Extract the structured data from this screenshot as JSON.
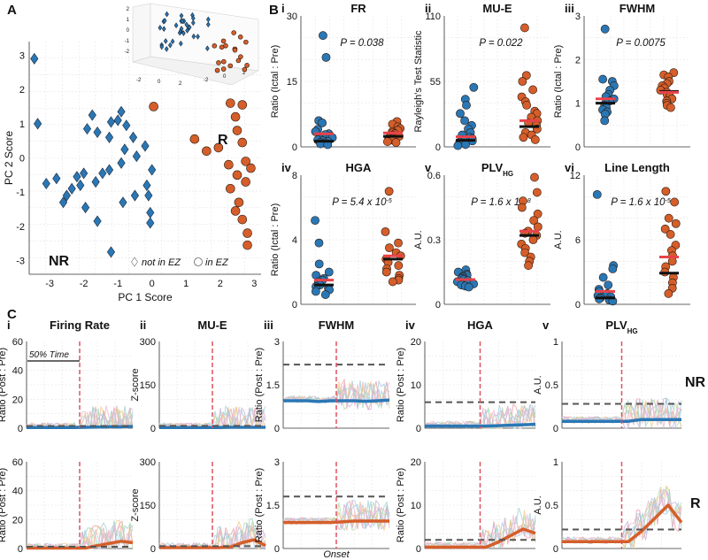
{
  "panel_labels": {
    "A": "A",
    "B": "B",
    "C": "C"
  },
  "colors": {
    "nr": "#2a77b5",
    "r": "#d55e2a",
    "red_line": "#e8434a",
    "black_line": "#111111",
    "dash": "#555555",
    "vline": "#e05060",
    "grid": "#e5e5e5"
  },
  "chart_data": [
    {
      "id": "A",
      "type": "scatter",
      "xlabel": "PC 1 Score",
      "ylabel": "PC 2 Score",
      "xlim": [
        -3.6,
        3.2
      ],
      "ylim": [
        -3.4,
        3.4
      ],
      "xticks": [
        -3,
        -2,
        -1,
        0,
        1,
        2,
        3
      ],
      "yticks": [
        -3,
        -2,
        -1,
        0,
        1,
        2,
        3
      ],
      "group_labels": {
        "nr": "NR",
        "r": "R"
      },
      "legend": {
        "nr_text": "not in EZ",
        "r_text": "in EZ"
      },
      "series": [
        {
          "name": "NR",
          "marker": "diamond",
          "points": [
            [
              -3.45,
              2.9
            ],
            [
              -3.35,
              1.0
            ],
            [
              -1.9,
              0.85
            ],
            [
              -1.75,
              1.25
            ],
            [
              -1.6,
              0.75
            ],
            [
              -1.2,
              1.05
            ],
            [
              -1.0,
              1.1
            ],
            [
              -0.9,
              1.35
            ],
            [
              -0.75,
              0.95
            ],
            [
              -1.25,
              0.6
            ],
            [
              -0.55,
              0.6
            ],
            [
              -0.2,
              0.35
            ],
            [
              -0.8,
              0.25
            ],
            [
              -0.45,
              0.05
            ],
            [
              -0.9,
              -0.15
            ],
            [
              -1.25,
              -0.35
            ],
            [
              -1.45,
              -0.45
            ],
            [
              -1.65,
              -0.7
            ],
            [
              -2.0,
              -0.45
            ],
            [
              -2.2,
              -0.55
            ],
            [
              -2.1,
              -0.8
            ],
            [
              -2.35,
              -0.9
            ],
            [
              -2.5,
              -1.1
            ],
            [
              -2.6,
              -1.3
            ],
            [
              -2.8,
              -0.6
            ],
            [
              -3.1,
              -0.75
            ],
            [
              -1.95,
              -1.45
            ],
            [
              -1.6,
              -1.85
            ],
            [
              -0.85,
              -1.3
            ],
            [
              -0.5,
              -1.1
            ],
            [
              -0.1,
              -1.1
            ],
            [
              0.0,
              -0.35
            ],
            [
              -0.15,
              -0.8
            ],
            [
              -0.05,
              -1.6
            ],
            [
              -0.05,
              -1.9
            ],
            [
              -1.2,
              -2.75
            ]
          ]
        },
        {
          "name": "R",
          "marker": "circle",
          "points": [
            [
              0.05,
              1.5
            ],
            [
              1.25,
              0.55
            ],
            [
              1.6,
              0.2
            ],
            [
              1.95,
              0.3
            ],
            [
              2.3,
              1.6
            ],
            [
              2.45,
              1.2
            ],
            [
              2.65,
              1.55
            ],
            [
              2.5,
              0.8
            ],
            [
              2.65,
              0.45
            ],
            [
              2.75,
              -0.1
            ],
            [
              2.25,
              -0.2
            ],
            [
              2.5,
              -0.5
            ],
            [
              2.75,
              -0.7
            ],
            [
              2.3,
              -0.9
            ],
            [
              2.55,
              -1.3
            ],
            [
              2.45,
              -1.55
            ],
            [
              2.65,
              -1.8
            ],
            [
              2.8,
              -2.2
            ],
            [
              2.8,
              -2.55
            ],
            [
              2.9,
              -0.3
            ]
          ]
        }
      ]
    },
    {
      "id": "B-i",
      "roman": "i",
      "type": "strip",
      "title": "FR",
      "title_sub": "",
      "ylabel": "Ratio (Ictal : Pre)",
      "ylim": [
        0,
        30
      ],
      "yticks": [
        0,
        15,
        30
      ],
      "annotation": "P = 0.038",
      "nr": {
        "values": [
          25.5,
          20.5,
          6.0,
          5.5,
          4.0,
          3.5,
          3.0,
          2.8,
          2.4,
          2.1,
          1.8,
          1.6,
          1.4,
          1.2,
          1.0,
          0.9,
          0.7,
          0.5
        ],
        "mean": 3.0,
        "median": 1.3
      },
      "r": {
        "values": [
          5.8,
          5.2,
          4.6,
          4.2,
          3.8,
          3.5,
          3.2,
          3.0,
          2.7,
          2.4,
          2.2,
          2.0,
          1.8,
          1.5,
          1.2,
          1.0
        ],
        "mean": 3.2,
        "median": 2.4
      }
    },
    {
      "id": "B-ii",
      "roman": "ii",
      "type": "strip",
      "title": "MU-E",
      "title_sub": "",
      "ylabel": "Rayleigh's Test Statistic",
      "ylim": [
        0,
        110
      ],
      "yticks": [
        0,
        55,
        110
      ],
      "annotation": "P = 0.022",
      "nr": {
        "values": [
          50,
          40,
          35,
          28,
          22,
          18,
          15,
          12,
          10,
          8,
          7,
          6,
          5,
          4,
          3,
          2,
          1
        ],
        "mean": 8.5,
        "median": 5.5
      },
      "r": {
        "values": [
          100,
          60,
          55,
          48,
          42,
          38,
          35,
          30,
          28,
          25,
          22,
          20,
          18,
          15,
          12,
          10,
          8,
          6
        ],
        "mean": 22,
        "median": 17
      }
    },
    {
      "id": "B-iii",
      "roman": "iii",
      "type": "strip",
      "title": "FWHM",
      "title_sub": "",
      "ylabel": "Ratio (Ictal : Pre)",
      "ylim": [
        0,
        3
      ],
      "yticks": [
        0,
        1,
        2,
        3
      ],
      "annotation": "P = 0.0075",
      "nr": {
        "values": [
          2.7,
          1.55,
          1.5,
          1.4,
          1.3,
          1.2,
          1.15,
          1.1,
          1.05,
          1.0,
          0.95,
          0.9,
          0.85,
          0.8,
          0.75,
          0.6
        ],
        "mean": 1.1,
        "median": 1.0
      },
      "r": {
        "values": [
          1.7,
          1.65,
          1.6,
          1.5,
          1.45,
          1.4,
          1.35,
          1.3,
          1.25,
          1.2,
          1.15,
          1.1,
          1.05,
          1.0,
          0.95,
          0.9
        ],
        "mean": 1.25,
        "median": 1.27
      }
    },
    {
      "id": "B-iv",
      "roman": "iv",
      "type": "strip",
      "title": "HGA",
      "title_sub": "",
      "ylabel": "Ratio (Ictal : Pre)",
      "ylim": [
        0,
        8
      ],
      "yticks": [
        0,
        4,
        8
      ],
      "annotation": "P = 5.4 x 10",
      "annotation_sup": "-5",
      "nr": {
        "values": [
          5.2,
          3.8,
          2.5,
          2.0,
          1.8,
          1.6,
          1.5,
          1.4,
          1.3,
          1.2,
          1.1,
          1.0,
          0.9,
          0.8,
          0.6
        ],
        "mean": 1.5,
        "median": 1.2
      },
      "r": {
        "values": [
          7.0,
          4.5,
          3.8,
          3.5,
          3.2,
          3.0,
          2.8,
          2.6,
          2.4,
          2.2,
          2.0,
          1.8,
          1.6,
          1.5,
          1.4
        ],
        "mean": 3.0,
        "median": 2.8
      }
    },
    {
      "id": "B-v",
      "roman": "v",
      "type": "strip",
      "title": "PLV",
      "title_sub": "HG",
      "ylabel": "A.U.",
      "ylim": [
        0,
        0.6
      ],
      "yticks": [
        0,
        0.3,
        0.6
      ],
      "annotation": "P = 1.6 x 10",
      "annotation_sup": "-8",
      "nr": {
        "values": [
          0.16,
          0.15,
          0.14,
          0.135,
          0.13,
          0.125,
          0.12,
          0.115,
          0.11,
          0.105,
          0.1,
          0.095,
          0.09,
          0.085,
          0.08
        ],
        "mean": 0.115,
        "median": 0.115
      },
      "r": {
        "values": [
          0.59,
          0.52,
          0.48,
          0.45,
          0.42,
          0.39,
          0.36,
          0.34,
          0.33,
          0.32,
          0.3,
          0.28,
          0.26,
          0.24,
          0.22,
          0.2,
          0.18
        ],
        "mean": 0.34,
        "median": 0.32
      }
    },
    {
      "id": "B-vi",
      "roman": "vi",
      "type": "strip",
      "title": "Line Length",
      "title_sub": "",
      "ylabel": "A.U.",
      "ylim": [
        0,
        12
      ],
      "yticks": [
        0,
        6,
        12
      ],
      "annotation": "P = 1.6 x 10",
      "annotation_sup": "-5",
      "nr": {
        "values": [
          10.2,
          3.6,
          3.3,
          2.5,
          1.8,
          1.4,
          1.2,
          1.0,
          0.8,
          0.7,
          0.6,
          0.5,
          0.4,
          0.3
        ],
        "mean": 1.2,
        "median": 0.6
      },
      "r": {
        "values": [
          10.5,
          9.5,
          8.0,
          7.5,
          7.0,
          6.5,
          5.5,
          5.0,
          4.5,
          4.0,
          3.5,
          3.0,
          2.5,
          2.0,
          1.5,
          1.0
        ],
        "mean": 4.4,
        "median": 2.9
      }
    },
    {
      "id": "C",
      "type": "line",
      "titles": [
        {
          "roman": "i",
          "text": "Firing Rate",
          "sub": ""
        },
        {
          "roman": "ii",
          "text": "MU-E",
          "sub": ""
        },
        {
          "roman": "iii",
          "text": "FWHM",
          "sub": ""
        },
        {
          "roman": "iv",
          "text": "HGA",
          "sub": ""
        },
        {
          "roman": "v",
          "text": "PLV",
          "sub": "HG"
        }
      ],
      "ylabels": [
        "Ratio (Post : Pre)",
        "Z-score",
        "Ratio (Post : Pre)",
        "Ratio (Post : Pre)",
        "A.U."
      ],
      "yticks": [
        [
          "0",
          "20",
          "40",
          "60"
        ],
        [
          "0",
          "150",
          "300"
        ],
        [
          "0",
          "1.5",
          "3"
        ],
        [
          "0",
          "10",
          "20"
        ],
        [
          "0",
          "0.5",
          "1"
        ]
      ],
      "ymax": [
        60,
        300,
        3,
        20,
        1
      ],
      "row_labels": [
        "NR",
        "R"
      ],
      "scale_bar_label": "50% Time",
      "onset_label": "Onset",
      "thresholds": [
        [
          1.5,
          8,
          2.2,
          6,
          0.28
        ],
        [
          1.2,
          8,
          1.8,
          2,
          0.22
        ]
      ],
      "mean_curves": {
        "nr": [
          [
            0.5,
            0.5,
            0.5,
            0.5,
            0.5,
            0.6,
            0.8,
            1.0,
            1.0,
            1.2
          ],
          [
            2,
            2,
            2,
            2,
            2,
            2,
            3,
            3,
            3,
            3
          ],
          [
            0.95,
            0.95,
            0.95,
            0.92,
            0.95,
            0.95,
            0.95,
            0.93,
            0.95,
            0.97
          ],
          [
            0.5,
            0.5,
            0.5,
            0.5,
            0.5,
            0.5,
            0.6,
            0.7,
            0.8,
            0.9
          ],
          [
            0.08,
            0.08,
            0.08,
            0.08,
            0.08,
            0.08,
            0.1,
            0.1,
            0.1,
            0.1
          ]
        ],
        "r": [
          [
            0.3,
            0.3,
            0.3,
            0.3,
            0.3,
            0.3,
            2.0,
            3.5,
            5.0,
            4.0
          ],
          [
            3,
            3,
            3,
            3,
            3,
            3,
            5,
            20,
            30,
            10
          ],
          [
            0.9,
            0.9,
            0.9,
            0.9,
            0.9,
            0.92,
            0.95,
            0.95,
            0.95,
            0.95
          ],
          [
            0.3,
            0.3,
            0.3,
            0.3,
            0.3,
            0.3,
            1.5,
            3.0,
            4.5,
            3.5
          ],
          [
            0.08,
            0.08,
            0.08,
            0.08,
            0.08,
            0.08,
            0.2,
            0.35,
            0.5,
            0.3
          ]
        ]
      }
    }
  ]
}
